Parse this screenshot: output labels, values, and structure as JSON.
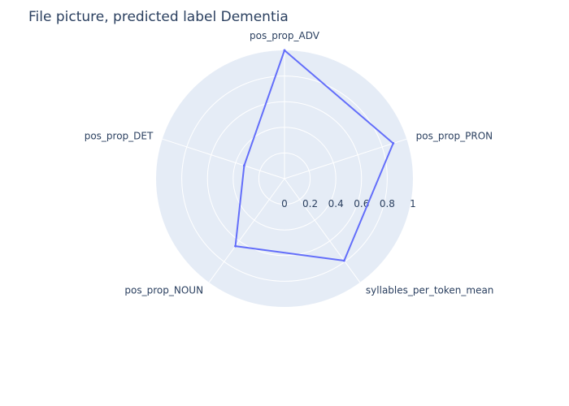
{
  "chart_data": {
    "type": "radar",
    "title": "File picture, predicted label Dementia",
    "axes": [
      "pos_prop_ADV",
      "pos_prop_PRON",
      "syllables_per_token_mean",
      "pos_prop_NOUN",
      "pos_prop_DET"
    ],
    "radial_ticks": [
      "0",
      "0.2",
      "0.4",
      "0.6",
      "0.8",
      "1"
    ],
    "radial_range": [
      0,
      1
    ],
    "series": [
      {
        "values": [
          1.0,
          0.89,
          0.79,
          0.65,
          0.33
        ],
        "color": "#636efa"
      }
    ],
    "background_color": "#e5ecf6",
    "grid_color": "#ffffff"
  }
}
